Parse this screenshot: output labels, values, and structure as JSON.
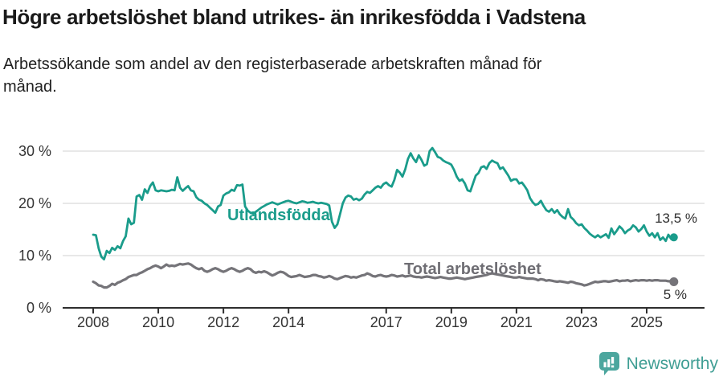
{
  "header": {
    "title": "Högre arbetslöshet bland utrikes- än inrikesfödda i Vadstena",
    "subtitle_lines": [
      "Arbetssökande som andel av den registerbaserade arbetskraften månad för",
      "månad."
    ]
  },
  "branding": {
    "logo_text": "Newsworthy",
    "logo_color": "#4ca69e"
  },
  "colors": {
    "utlandsfodda": "#1a9c8b",
    "total": "#757479",
    "grid": "#d9d9d9",
    "axis": "#2e2e2e",
    "tick_text": "#333333"
  },
  "chart_data": {
    "type": "line",
    "title": "Högre arbetslöshet bland utrikes- än inrikesfödda i Vadstena",
    "subtitle": "Arbetssökande som andel av den registerbaserade arbetskraften månad för månad.",
    "x_unit": "month",
    "x_start": "2008-01",
    "x_end": "2025-11",
    "ylim": [
      0,
      32
    ],
    "grid": "horizontal",
    "legend": "inline-labels",
    "y_ticks": [
      {
        "value": 0,
        "label": "0 %"
      },
      {
        "value": 10,
        "label": "10 %"
      },
      {
        "value": 20,
        "label": "20 %"
      },
      {
        "value": 30,
        "label": "30 %"
      }
    ],
    "x_ticks": [
      {
        "year": 2008,
        "label": "2008"
      },
      {
        "year": 2010,
        "label": "2010"
      },
      {
        "year": 2012,
        "label": "2012"
      },
      {
        "year": 2014,
        "label": "2014"
      },
      {
        "year": 2017,
        "label": "2017"
      },
      {
        "year": 2019,
        "label": "2019"
      },
      {
        "year": 2021,
        "label": "2021"
      },
      {
        "year": 2023,
        "label": "2023"
      },
      {
        "year": 2025,
        "label": "2025"
      }
    ],
    "series": [
      {
        "name": "Utlandsfödda",
        "color": "#1a9c8b",
        "end_label": "13,5 %",
        "end_value": 13.5,
        "values": [
          14.0,
          13.9,
          11.4,
          9.8,
          9.3,
          10.9,
          10.5,
          11.5,
          11.1,
          11.8,
          11.4,
          12.8,
          13.7,
          17.1,
          16.0,
          16.3,
          21.3,
          21.6,
          20.7,
          22.7,
          22.0,
          23.3,
          24.0,
          22.5,
          22.3,
          22.5,
          22.4,
          22.3,
          22.4,
          22.6,
          22.5,
          25.0,
          23.0,
          22.4,
          22.9,
          23.3,
          22.5,
          22.3,
          21.2,
          20.7,
          20.5,
          20.0,
          19.7,
          19.2,
          18.7,
          18.2,
          19.4,
          19.7,
          21.5,
          21.9,
          22.1,
          22.6,
          22.4,
          23.5,
          23.4,
          23.6,
          19.4,
          18.6,
          18.2,
          18.0,
          18.4,
          18.8,
          19.2,
          19.5,
          19.8,
          20.0,
          20.2,
          20.0,
          19.8,
          20.0,
          20.2,
          20.4,
          20.5,
          20.3,
          20.1,
          20.0,
          20.2,
          20.4,
          20.3,
          20.1,
          20.2,
          20.3,
          20.1,
          20.0,
          20.1,
          20.0,
          19.9,
          19.6,
          16.5,
          15.3,
          16.0,
          18.0,
          20.0,
          21.1,
          21.5,
          21.3,
          20.7,
          20.9,
          20.6,
          20.9,
          21.7,
          22.2,
          22.0,
          22.5,
          23.0,
          23.3,
          23.0,
          23.7,
          24.0,
          23.5,
          23.2,
          24.5,
          26.4,
          25.9,
          25.1,
          26.5,
          28.5,
          29.6,
          28.6,
          27.9,
          29.2,
          28.3,
          27.2,
          27.5,
          30.0,
          30.6,
          29.8,
          28.9,
          28.7,
          28.2,
          27.9,
          27.7,
          27.4,
          26.4,
          25.1,
          24.3,
          24.6,
          23.8,
          22.5,
          22.3,
          23.8,
          25.3,
          25.8,
          26.9,
          27.1,
          26.6,
          27.7,
          28.2,
          27.9,
          27.7,
          26.6,
          26.9,
          26.1,
          25.3,
          24.3,
          24.6,
          24.6,
          23.8,
          24.0,
          23.3,
          22.5,
          21.0,
          20.2,
          19.7,
          19.9,
          20.5,
          19.5,
          18.7,
          18.4,
          18.9,
          18.2,
          18.7,
          17.9,
          17.4,
          17.1,
          18.9,
          17.4,
          16.9,
          16.2,
          15.8,
          16.0,
          15.3,
          14.8,
          14.2,
          13.8,
          13.5,
          13.9,
          13.5,
          13.8,
          14.1,
          13.4,
          15.2,
          14.1,
          14.8,
          15.6,
          15.1,
          14.3,
          14.8,
          15.1,
          15.8,
          15.4,
          14.6,
          15.1,
          15.8,
          14.6,
          13.8,
          14.3,
          13.5,
          14.3,
          13.0,
          13.5,
          12.8,
          14.0,
          13.2,
          13.5
        ]
      },
      {
        "name": "Total arbetslöshet",
        "color": "#757479",
        "end_label": "5 %",
        "end_value": 5.0,
        "values": [
          5.0,
          4.7,
          4.3,
          4.2,
          3.9,
          3.9,
          4.2,
          4.6,
          4.4,
          4.8,
          5.0,
          5.3,
          5.5,
          5.9,
          6.1,
          6.3,
          6.3,
          6.6,
          6.8,
          7.1,
          7.4,
          7.6,
          7.9,
          8.1,
          7.9,
          7.6,
          7.9,
          8.3,
          8.0,
          8.1,
          8.0,
          8.2,
          8.4,
          8.3,
          8.4,
          8.5,
          8.3,
          7.9,
          7.6,
          7.4,
          7.6,
          7.1,
          6.9,
          7.1,
          7.4,
          7.6,
          7.4,
          7.1,
          6.9,
          7.1,
          7.4,
          7.6,
          7.4,
          7.1,
          6.9,
          7.1,
          7.4,
          7.6,
          7.4,
          6.9,
          6.7,
          6.9,
          6.8,
          7.0,
          6.8,
          6.5,
          6.2,
          6.4,
          6.7,
          6.9,
          6.8,
          6.5,
          6.1,
          5.9,
          6.0,
          6.1,
          6.3,
          6.1,
          5.9,
          6.0,
          6.1,
          6.3,
          6.3,
          6.1,
          6.0,
          5.8,
          5.9,
          6.1,
          5.9,
          5.6,
          5.5,
          5.7,
          5.9,
          6.1,
          6.0,
          5.8,
          5.9,
          5.8,
          6.0,
          6.2,
          6.3,
          6.6,
          6.4,
          6.1,
          6.0,
          6.2,
          6.3,
          6.1,
          6.0,
          6.1,
          6.3,
          6.2,
          6.0,
          6.1,
          6.2,
          6.0,
          6.1,
          6.2,
          6.0,
          5.9,
          5.9,
          5.8,
          5.9,
          6.0,
          5.9,
          5.8,
          5.7,
          5.8,
          5.9,
          5.8,
          5.7,
          5.6,
          5.6,
          5.7,
          5.8,
          5.7,
          5.6,
          5.5,
          5.6,
          5.7,
          5.8,
          5.9,
          6.0,
          6.1,
          6.2,
          6.3,
          6.5,
          6.6,
          6.5,
          6.4,
          6.3,
          6.2,
          6.1,
          6.0,
          5.9,
          5.8,
          5.8,
          5.9,
          5.8,
          5.7,
          5.6,
          5.6,
          5.6,
          5.5,
          5.3,
          5.5,
          5.4,
          5.2,
          5.3,
          5.2,
          5.1,
          5.0,
          5.1,
          5.0,
          4.9,
          4.8,
          5.0,
          4.9,
          4.7,
          4.6,
          4.5,
          4.3,
          4.4,
          4.6,
          4.8,
          5.0,
          4.9,
          5.0,
          5.1,
          5.1,
          5.0,
          5.1,
          5.2,
          5.3,
          5.1,
          5.2,
          5.2,
          5.3,
          5.1,
          5.2,
          5.3,
          5.2,
          5.3,
          5.3,
          5.2,
          5.3,
          5.2,
          5.3,
          5.3,
          5.2,
          5.2,
          5.2,
          5.1,
          5.1,
          5.0
        ]
      }
    ]
  }
}
